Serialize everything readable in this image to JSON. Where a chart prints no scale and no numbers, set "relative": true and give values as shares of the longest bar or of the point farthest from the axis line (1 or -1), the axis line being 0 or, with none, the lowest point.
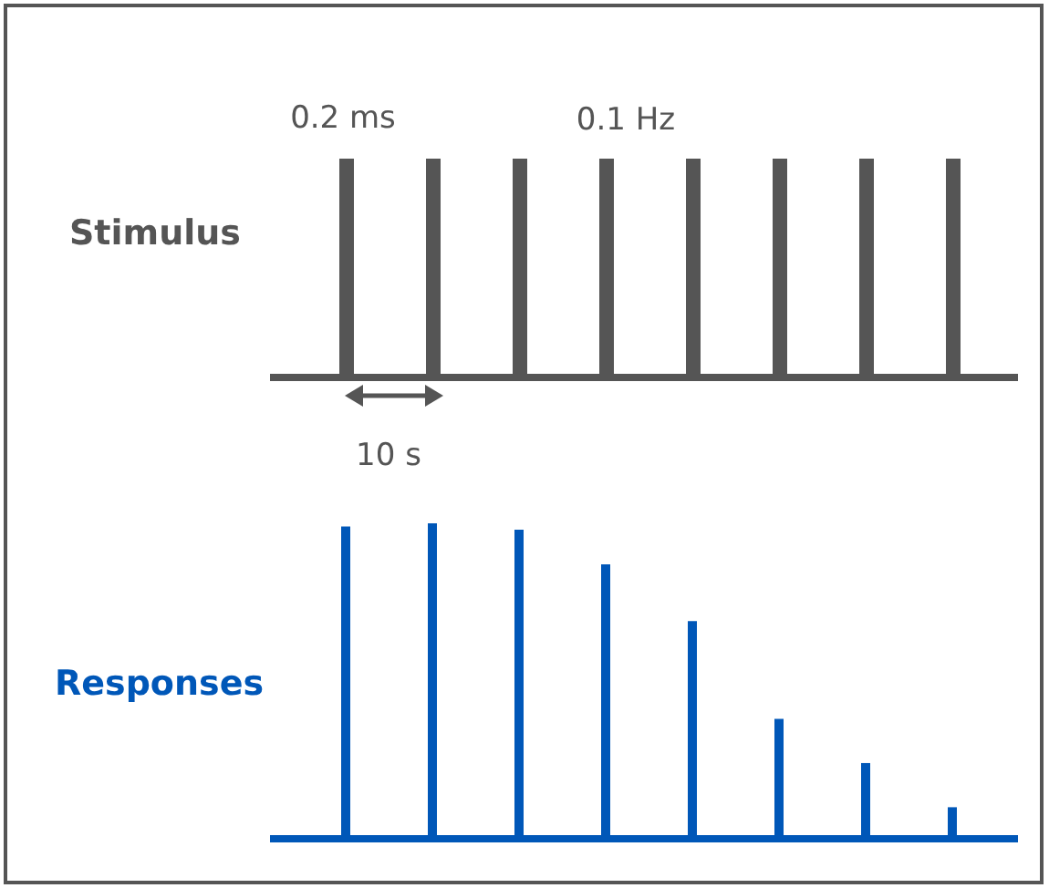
{
  "chart_data": [
    {
      "type": "bar",
      "ylabel": "Stimulus",
      "categories": [
        null,
        null,
        null,
        null,
        null,
        null,
        null,
        null
      ],
      "values": [
        1,
        1,
        1,
        1,
        1,
        1,
        1,
        1
      ],
      "color": "#555555",
      "relative": true,
      "annotations": [
        "0.2 ms",
        "0.1 Hz",
        "10 s"
      ]
    },
    {
      "type": "bar",
      "ylabel": "Responses",
      "categories": [
        null,
        null,
        null,
        null,
        null,
        null,
        null,
        null
      ],
      "values": [
        0.99,
        1,
        0.98,
        0.87,
        0.69,
        0.38,
        0.24,
        0.1
      ],
      "color": "#0057b8",
      "relative": true
    }
  ]
}
